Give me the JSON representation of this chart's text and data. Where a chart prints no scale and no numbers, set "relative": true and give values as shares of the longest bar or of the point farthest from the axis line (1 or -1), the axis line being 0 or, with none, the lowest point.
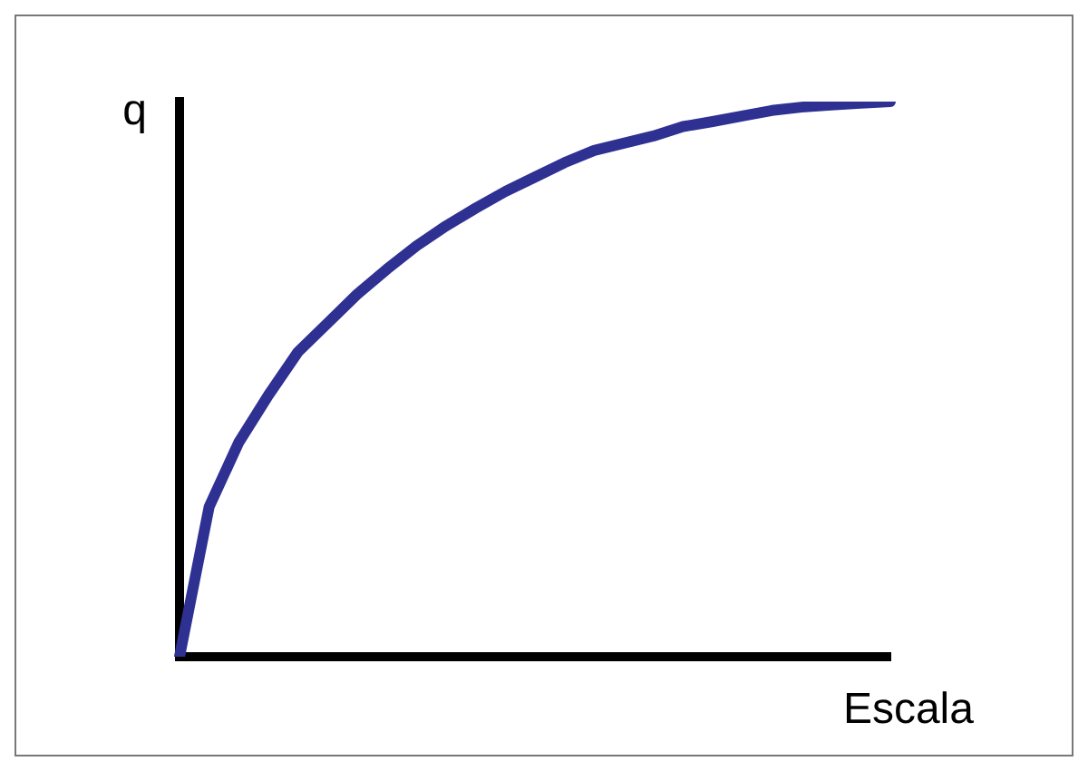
{
  "chart_data": {
    "type": "line",
    "relative": true,
    "xlabel": "Escala",
    "ylabel": "q",
    "marker": "none",
    "grid": false,
    "legend": false,
    "categories": [
      null,
      null,
      null,
      null,
      null,
      null,
      null,
      null,
      null,
      null,
      null,
      null,
      null,
      null,
      null,
      null,
      null,
      null,
      null,
      null,
      null,
      null,
      null,
      null,
      null
    ],
    "series": [
      {
        "color": "#2e3192",
        "values": [
          0,
          0.27,
          0.386,
          0.471,
          0.549,
          0.601,
          0.653,
          0.698,
          0.74,
          0.776,
          0.808,
          0.838,
          0.864,
          0.89,
          0.912,
          0.925,
          0.938,
          0.955,
          0.964,
          0.974,
          0.984,
          0.99,
          0.994,
          0.997,
          1
        ]
      }
    ]
  }
}
